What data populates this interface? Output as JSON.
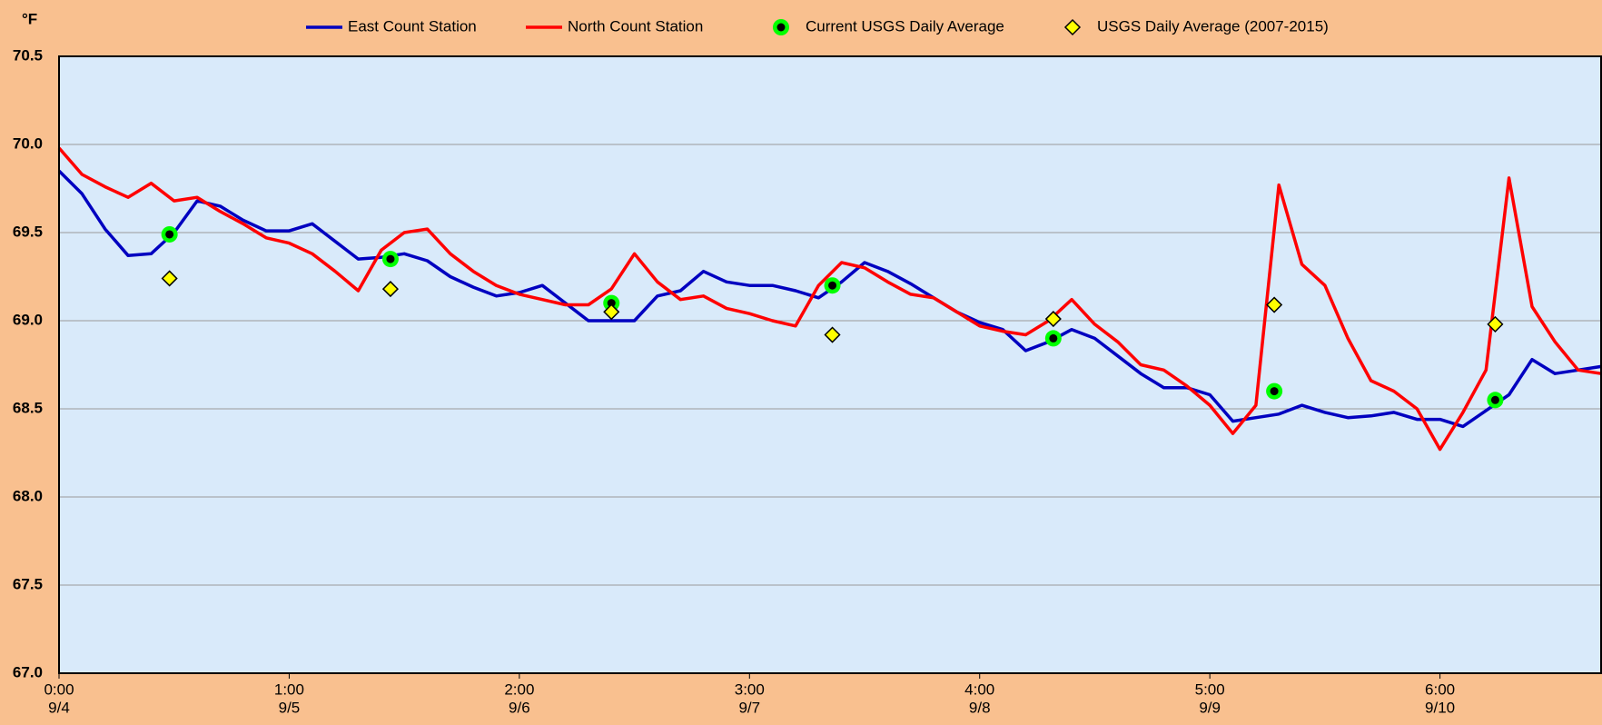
{
  "chart_data": {
    "type": "line",
    "y_label": "°F",
    "x": [
      0.0,
      0.1,
      0.2,
      0.3,
      0.4,
      0.5,
      0.6,
      0.7,
      0.8,
      0.9,
      1.0,
      1.1,
      1.2,
      1.3,
      1.4,
      1.5,
      1.6,
      1.7,
      1.8,
      1.9,
      2.0,
      2.1,
      2.2,
      2.3,
      2.4,
      2.5,
      2.6,
      2.7,
      2.8,
      2.9,
      3.0,
      3.1,
      3.2,
      3.3,
      3.4,
      3.5,
      3.6,
      3.7,
      3.8,
      3.9,
      4.0,
      4.1,
      4.2,
      4.3,
      4.4,
      4.5,
      4.6,
      4.7,
      4.8,
      4.9,
      5.0,
      5.1,
      5.2,
      5.3,
      5.4,
      5.5,
      5.6,
      5.7,
      5.8,
      5.9,
      6.0,
      6.1,
      6.2,
      6.3,
      6.4,
      6.5,
      6.6,
      6.7
    ],
    "series": [
      {
        "name": "East Count Station",
        "type": "line",
        "color": "#0000c0",
        "values": [
          69.85,
          69.72,
          69.52,
          69.37,
          69.38,
          69.5,
          69.68,
          69.65,
          69.57,
          69.51,
          69.51,
          69.55,
          69.45,
          69.35,
          69.36,
          69.38,
          69.34,
          69.25,
          69.19,
          69.14,
          69.16,
          69.2,
          69.1,
          69.0,
          69.0,
          69.0,
          69.14,
          69.17,
          69.28,
          69.22,
          69.2,
          69.2,
          69.17,
          69.13,
          69.22,
          69.33,
          69.28,
          69.21,
          69.13,
          69.05,
          68.99,
          68.95,
          68.83,
          68.88,
          68.95,
          68.9,
          68.8,
          68.7,
          68.62,
          68.62,
          68.58,
          68.43,
          68.45,
          68.47,
          68.52,
          68.48,
          68.45,
          68.46,
          68.48,
          68.44,
          68.44,
          68.4,
          68.49,
          68.58,
          68.78,
          68.7,
          68.72,
          68.74
        ]
      },
      {
        "name": "North Count Station",
        "type": "line",
        "color": "#ff0000",
        "values": [
          69.98,
          69.83,
          69.76,
          69.7,
          69.78,
          69.68,
          69.7,
          69.62,
          69.55,
          69.47,
          69.44,
          69.38,
          69.28,
          69.17,
          69.4,
          69.5,
          69.52,
          69.38,
          69.28,
          69.2,
          69.15,
          69.12,
          69.09,
          69.09,
          69.18,
          69.38,
          69.22,
          69.12,
          69.14,
          69.07,
          69.04,
          69.0,
          68.97,
          69.2,
          69.33,
          69.3,
          69.22,
          69.15,
          69.13,
          69.05,
          68.97,
          68.94,
          68.92,
          69.0,
          69.12,
          68.98,
          68.88,
          68.75,
          68.72,
          68.63,
          68.52,
          68.36,
          68.52,
          69.77,
          69.32,
          69.2,
          68.9,
          68.66,
          68.6,
          68.5,
          68.27,
          68.48,
          68.72,
          69.81,
          69.08,
          68.88,
          68.72,
          68.7
        ]
      },
      {
        "name": "Current USGS Daily Average",
        "type": "scatter",
        "marker": "circle",
        "color": "#00ff00",
        "x": [
          0.48,
          1.44,
          2.4,
          3.36,
          4.32,
          5.28,
          6.24
        ],
        "values": [
          69.49,
          69.35,
          69.1,
          69.2,
          68.9,
          68.6,
          68.55
        ]
      },
      {
        "name": "USGS Daily Average (2007-2015)",
        "type": "scatter",
        "marker": "diamond",
        "color": "#ffff00",
        "x": [
          0.48,
          1.44,
          2.4,
          3.36,
          4.32,
          5.28,
          6.24
        ],
        "values": [
          69.24,
          69.18,
          69.05,
          68.92,
          69.01,
          69.09,
          68.98
        ]
      }
    ],
    "xlim": [
      0,
      6.7
    ],
    "xticks": [
      {
        "value": 0,
        "label": "0:00"
      },
      {
        "value": 1,
        "label": "1:00"
      },
      {
        "value": 2,
        "label": "2:00"
      },
      {
        "value": 3,
        "label": "3:00"
      },
      {
        "value": 4,
        "label": "4:00"
      },
      {
        "value": 5,
        "label": "5:00"
      },
      {
        "value": 6,
        "label": "6:00"
      }
    ],
    "xtick_dates": [
      "9/4",
      "9/5",
      "9/6",
      "9/7",
      "9/8",
      "9/9",
      "9/10"
    ],
    "ylim": [
      67.0,
      70.5
    ],
    "yticks": [
      {
        "value": 67,
        "label": "67.0"
      },
      67.5,
      {
        "value": 68,
        "label": "68.0"
      },
      68.5,
      {
        "value": 69,
        "label": "69.0"
      },
      69.5,
      {
        "value": 70,
        "label": "70.0"
      },
      70.5
    ],
    "grid": true,
    "legend": "top",
    "plot_background": "#d9eafa"
  }
}
